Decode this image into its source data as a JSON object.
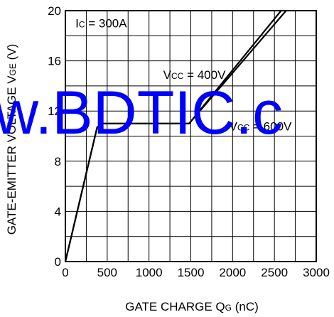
{
  "chart_data": {
    "type": "line",
    "title": "",
    "xlabel": {
      "main": "GATE CHARGE  Q",
      "sub": "G",
      "unit": " (nC)"
    },
    "ylabel": {
      "main": "GATE-EMITTER VOLTAGE  V",
      "sub": "GE",
      "unit": " (V)"
    },
    "xlim": [
      0,
      3000
    ],
    "ylim": [
      0,
      20
    ],
    "x_ticks": [
      0,
      500,
      1000,
      1500,
      2000,
      2500,
      3000
    ],
    "y_ticks": [
      0,
      4,
      8,
      12,
      16,
      20
    ],
    "x_tick_labels": [
      "0",
      "500",
      "1000",
      "1500",
      "2000",
      "2500",
      "3000"
    ],
    "y_tick_labels": [
      "0",
      "4",
      "8",
      "12",
      "16",
      "20"
    ],
    "grid": true,
    "series": [
      {
        "values": [
          [
            0,
            0
          ],
          [
            380,
            10.7
          ],
          [
            450,
            11
          ],
          [
            1480,
            11
          ],
          [
            2640,
            20
          ]
        ]
      },
      {
        "values": [
          [
            0,
            0
          ],
          [
            380,
            10.7
          ],
          [
            450,
            11
          ],
          [
            1480,
            11
          ],
          [
            2580,
            20
          ]
        ]
      }
    ],
    "annotations": {
      "condition": {
        "main": "I",
        "sub": "C",
        "rest": " = 300A",
        "x": 120,
        "y": 19
      },
      "vcc400": {
        "main": "V",
        "sub": "CC",
        "rest": " = 400V",
        "x": 1170,
        "y": 14.9
      },
      "vcc600": {
        "main": "V",
        "sub": "CC",
        "rest": " = 600V",
        "x": 1960,
        "y": 10.8
      }
    }
  },
  "watermark": {
    "text": "w.BDTIC.c",
    "color": "#0000ff"
  }
}
